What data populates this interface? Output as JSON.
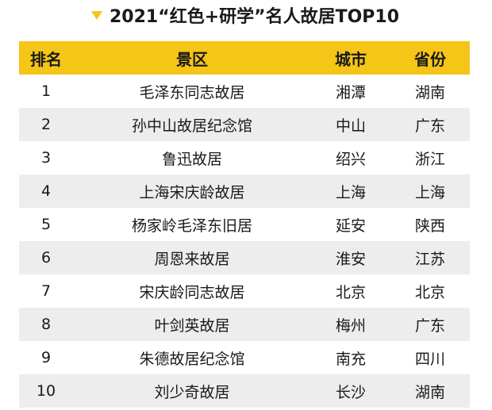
{
  "title": "2021“红色+研学”名人故居TOP10",
  "accent_color": "#f5c518",
  "stripe_color": "#ededed",
  "title_icon": "triangle-down-icon",
  "table": {
    "headers": [
      "排名",
      "景区",
      "城市",
      "省份"
    ],
    "rows": [
      {
        "rank": "1",
        "spot": "毛泽东同志故居",
        "city": "湘潭",
        "province": "湖南"
      },
      {
        "rank": "2",
        "spot": "孙中山故居纪念馆",
        "city": "中山",
        "province": "广东"
      },
      {
        "rank": "3",
        "spot": "鲁迅故居",
        "city": "绍兴",
        "province": "浙江"
      },
      {
        "rank": "4",
        "spot": "上海宋庆龄故居",
        "city": "上海",
        "province": "上海"
      },
      {
        "rank": "5",
        "spot": "杨家岭毛泽东旧居",
        "city": "延安",
        "province": "陕西"
      },
      {
        "rank": "6",
        "spot": "周恩来故居",
        "city": "淮安",
        "province": "江苏"
      },
      {
        "rank": "7",
        "spot": "宋庆龄同志故居",
        "city": "北京",
        "province": "北京"
      },
      {
        "rank": "8",
        "spot": "叶剑英故居",
        "city": "梅州",
        "province": "广东"
      },
      {
        "rank": "9",
        "spot": "朱德故居纪念馆",
        "city": "南充",
        "province": "四川"
      },
      {
        "rank": "10",
        "spot": "刘少奇故居",
        "city": "长沙",
        "province": "湖南"
      }
    ]
  }
}
